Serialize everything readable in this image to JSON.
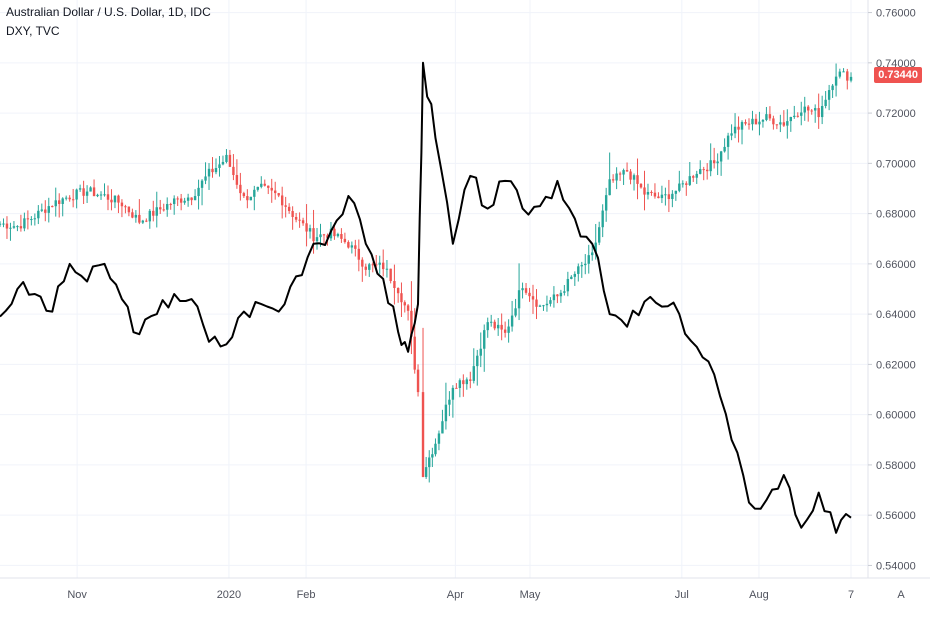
{
  "header": {
    "title": "Australian Dollar / U.S. Dollar, 1D, IDC",
    "compare_symbol": "DXY, TVC"
  },
  "price_tag": "0.73440",
  "auto_scale_button": "A",
  "colors": {
    "up": "#26a69a",
    "down": "#ef5350",
    "compare_line": "#000000",
    "grid": "#f0f3fa",
    "axis_text": "#50535e"
  },
  "chart_data": {
    "type": "line",
    "title": "Australian Dollar / U.S. Dollar, 1D, IDC",
    "xlabel": "",
    "ylabel": "",
    "ylim": [
      0.535,
      0.765
    ],
    "y_ticks": [
      "0.76000",
      "0.74000",
      "0.72000",
      "0.70000",
      "0.68000",
      "0.66000",
      "0.64000",
      "0.62000",
      "0.60000",
      "0.58000",
      "0.56000",
      "0.54000"
    ],
    "y_tick_values": [
      0.76,
      0.74,
      0.72,
      0.7,
      0.68,
      0.66,
      0.64,
      0.62,
      0.6,
      0.58,
      0.56,
      0.54
    ],
    "x_ticks": [
      {
        "label": "Nov",
        "date": "2019-11-01"
      },
      {
        "label": "2020",
        "date": "2020-01-01"
      },
      {
        "label": "Feb",
        "date": "2020-02-01"
      },
      {
        "label": "Apr",
        "date": "2020-04-01"
      },
      {
        "label": "May",
        "date": "2020-05-01"
      },
      {
        "label": "Jul",
        "date": "2020-07-01"
      },
      {
        "label": "Aug",
        "date": "2020-08-01"
      },
      {
        "label": "7",
        "date": "2020-09-07"
      }
    ],
    "xlim": [
      "2019-10-01",
      "2020-09-09"
    ],
    "grid": true,
    "series": [
      {
        "name": "Australian Dollar / U.S. Dollar, 1D, IDC",
        "style": "candle",
        "points": [
          {
            "x": "2019-10-01",
            "close": 0.676
          },
          {
            "x": "2019-10-08",
            "close": 0.675
          },
          {
            "x": "2019-10-15",
            "close": 0.679
          },
          {
            "x": "2019-10-22",
            "close": 0.684
          },
          {
            "x": "2019-10-29",
            "close": 0.687
          },
          {
            "x": "2019-11-05",
            "close": 0.689
          },
          {
            "x": "2019-11-12",
            "close": 0.687
          },
          {
            "x": "2019-11-19",
            "close": 0.684
          },
          {
            "x": "2019-11-26",
            "close": 0.677
          },
          {
            "x": "2019-12-03",
            "close": 0.681
          },
          {
            "x": "2019-12-10",
            "close": 0.685
          },
          {
            "x": "2019-12-17",
            "close": 0.687
          },
          {
            "x": "2019-12-24",
            "close": 0.696
          },
          {
            "x": "2019-12-31",
            "close": 0.702
          },
          {
            "x": "2020-01-07",
            "close": 0.686
          },
          {
            "x": "2020-01-14",
            "close": 0.69
          },
          {
            "x": "2020-01-21",
            "close": 0.687
          },
          {
            "x": "2020-01-28",
            "close": 0.678
          },
          {
            "x": "2020-02-04",
            "close": 0.671
          },
          {
            "x": "2020-02-11",
            "close": 0.672
          },
          {
            "x": "2020-02-18",
            "close": 0.668
          },
          {
            "x": "2020-02-25",
            "close": 0.659
          },
          {
            "x": "2020-03-03",
            "close": 0.659
          },
          {
            "x": "2020-03-09",
            "close": 0.65
          },
          {
            "x": "2020-03-13",
            "close": 0.64
          },
          {
            "x": "2020-03-17",
            "close": 0.609
          },
          {
            "x": "2020-03-19",
            "close": 0.577
          },
          {
            "x": "2020-03-24",
            "close": 0.589
          },
          {
            "x": "2020-03-31",
            "close": 0.612
          },
          {
            "x": "2020-04-07",
            "close": 0.615
          },
          {
            "x": "2020-04-14",
            "close": 0.637
          },
          {
            "x": "2020-04-21",
            "close": 0.632
          },
          {
            "x": "2020-04-28",
            "close": 0.652
          },
          {
            "x": "2020-05-05",
            "close": 0.643
          },
          {
            "x": "2020-05-12",
            "close": 0.647
          },
          {
            "x": "2020-05-19",
            "close": 0.656
          },
          {
            "x": "2020-05-26",
            "close": 0.663
          },
          {
            "x": "2020-06-02",
            "close": 0.692
          },
          {
            "x": "2020-06-09",
            "close": 0.697
          },
          {
            "x": "2020-06-16",
            "close": 0.688
          },
          {
            "x": "2020-06-23",
            "close": 0.686
          },
          {
            "x": "2020-06-30",
            "close": 0.69
          },
          {
            "x": "2020-07-07",
            "close": 0.697
          },
          {
            "x": "2020-07-14",
            "close": 0.7
          },
          {
            "x": "2020-07-21",
            "close": 0.713
          },
          {
            "x": "2020-07-28",
            "close": 0.716
          },
          {
            "x": "2020-08-04",
            "close": 0.718
          },
          {
            "x": "2020-08-11",
            "close": 0.716
          },
          {
            "x": "2020-08-18",
            "close": 0.722
          },
          {
            "x": "2020-08-25",
            "close": 0.72
          },
          {
            "x": "2020-09-01",
            "close": 0.736
          },
          {
            "x": "2020-09-07",
            "close": 0.7344
          }
        ]
      },
      {
        "name": "DXY, TVC",
        "style": "line",
        "points": [
          {
            "x": "2019-10-01",
            "y": 0.639
          },
          {
            "x": "2019-10-08",
            "y": 0.65
          },
          {
            "x": "2019-10-15",
            "y": 0.648
          },
          {
            "x": "2019-10-22",
            "y": 0.641
          },
          {
            "x": "2019-10-29",
            "y": 0.66
          },
          {
            "x": "2019-11-05",
            "y": 0.653
          },
          {
            "x": "2019-11-12",
            "y": 0.66
          },
          {
            "x": "2019-11-19",
            "y": 0.646
          },
          {
            "x": "2019-11-26",
            "y": 0.632
          },
          {
            "x": "2019-12-03",
            "y": 0.64
          },
          {
            "x": "2019-12-10",
            "y": 0.648
          },
          {
            "x": "2019-12-17",
            "y": 0.646
          },
          {
            "x": "2019-12-24",
            "y": 0.629
          },
          {
            "x": "2019-12-31",
            "y": 0.628
          },
          {
            "x": "2020-01-07",
            "y": 0.641
          },
          {
            "x": "2020-01-14",
            "y": 0.644
          },
          {
            "x": "2020-01-21",
            "y": 0.641
          },
          {
            "x": "2020-01-28",
            "y": 0.655
          },
          {
            "x": "2020-02-04",
            "y": 0.668
          },
          {
            "x": "2020-02-11",
            "y": 0.673
          },
          {
            "x": "2020-02-18",
            "y": 0.687
          },
          {
            "x": "2020-02-25",
            "y": 0.668
          },
          {
            "x": "2020-03-03",
            "y": 0.654
          },
          {
            "x": "2020-03-09",
            "y": 0.633
          },
          {
            "x": "2020-03-13",
            "y": 0.625
          },
          {
            "x": "2020-03-17",
            "y": 0.644
          },
          {
            "x": "2020-03-19",
            "y": 0.74
          },
          {
            "x": "2020-03-24",
            "y": 0.71
          },
          {
            "x": "2020-03-31",
            "y": 0.668
          },
          {
            "x": "2020-04-07",
            "y": 0.695
          },
          {
            "x": "2020-04-14",
            "y": 0.682
          },
          {
            "x": "2020-04-21",
            "y": 0.693
          },
          {
            "x": "2020-04-28",
            "y": 0.682
          },
          {
            "x": "2020-05-05",
            "y": 0.683
          },
          {
            "x": "2020-05-12",
            "y": 0.693
          },
          {
            "x": "2020-05-19",
            "y": 0.678
          },
          {
            "x": "2020-05-26",
            "y": 0.668
          },
          {
            "x": "2020-06-02",
            "y": 0.64
          },
          {
            "x": "2020-06-09",
            "y": 0.635
          },
          {
            "x": "2020-06-16",
            "y": 0.645
          },
          {
            "x": "2020-06-23",
            "y": 0.643
          },
          {
            "x": "2020-06-30",
            "y": 0.64
          },
          {
            "x": "2020-07-07",
            "y": 0.627
          },
          {
            "x": "2020-07-14",
            "y": 0.616
          },
          {
            "x": "2020-07-21",
            "y": 0.59
          },
          {
            "x": "2020-07-28",
            "y": 0.565
          },
          {
            "x": "2020-08-04",
            "y": 0.566
          },
          {
            "x": "2020-08-11",
            "y": 0.576
          },
          {
            "x": "2020-08-18",
            "y": 0.555
          },
          {
            "x": "2020-08-25",
            "y": 0.569
          },
          {
            "x": "2020-09-01",
            "y": 0.553
          },
          {
            "x": "2020-09-07",
            "y": 0.559
          }
        ]
      }
    ]
  }
}
